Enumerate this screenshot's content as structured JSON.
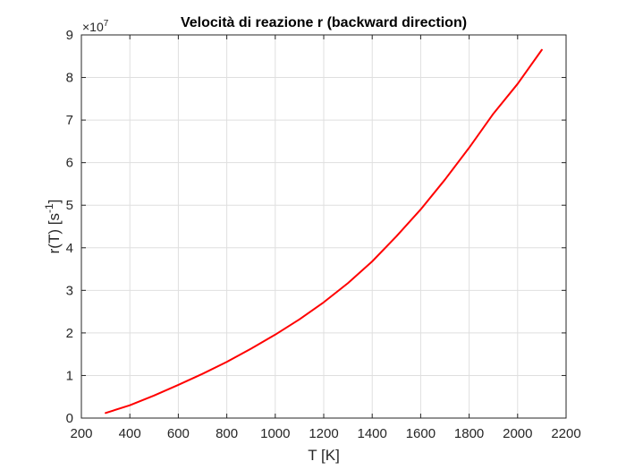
{
  "chart_data": {
    "type": "line",
    "title": "Velocità di reazione r (backward direction)",
    "xlabel": "T [K]",
    "ylabel": {
      "base": "r(T) [s",
      "superscript": "-1",
      "suffix": "]"
    },
    "xlim": [
      200,
      2200
    ],
    "ylim": [
      0,
      9
    ],
    "xticks": [
      200,
      400,
      600,
      800,
      1000,
      1200,
      1400,
      1600,
      1800,
      2000,
      2200
    ],
    "yticks": [
      0,
      1,
      2,
      3,
      4,
      5,
      6,
      7,
      8,
      9
    ],
    "y_multiplier": {
      "prefix": "×10",
      "exponent": "7"
    },
    "grid": true,
    "series": [
      {
        "color": "#ff0000",
        "x": [
          300,
          400,
          500,
          600,
          700,
          800,
          900,
          1000,
          1100,
          1200,
          1300,
          1400,
          1500,
          1600,
          1700,
          1800,
          1900,
          2000,
          2100
        ],
        "y": [
          0.12,
          0.3,
          0.53,
          0.78,
          1.04,
          1.32,
          1.63,
          1.96,
          2.32,
          2.72,
          3.17,
          3.68,
          4.27,
          4.9,
          5.6,
          6.35,
          7.15,
          7.85,
          8.65
        ]
      }
    ]
  }
}
